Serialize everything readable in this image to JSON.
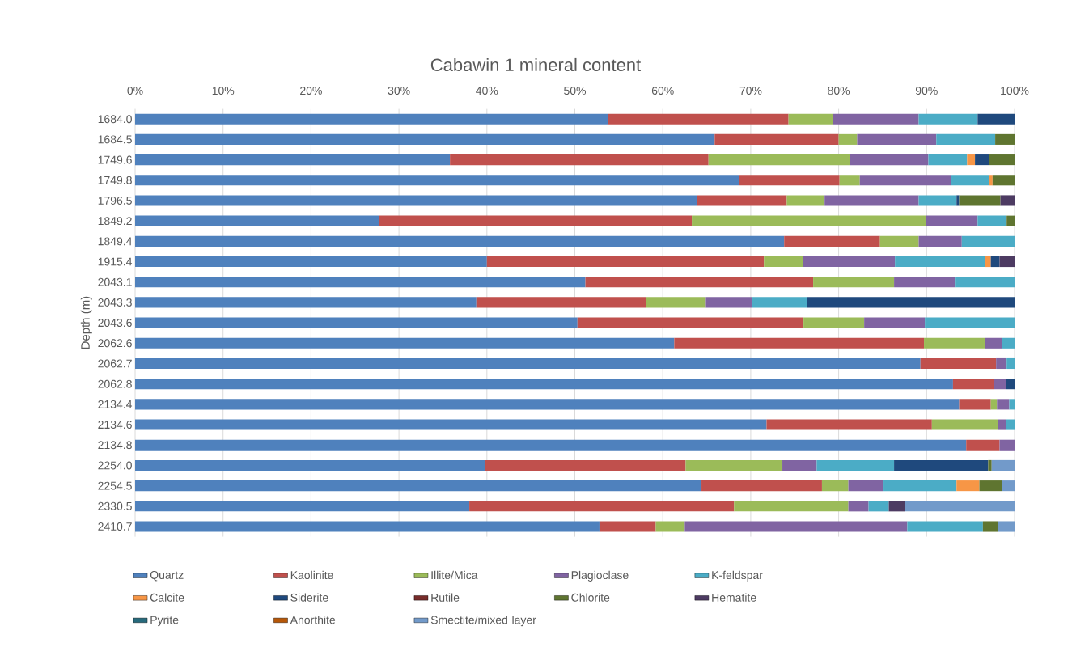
{
  "chart_data": {
    "type": "bar",
    "orientation": "horizontal",
    "stacked": true,
    "title": "Cabawin 1 mineral content",
    "ylabel": "Depth (m)",
    "categories": [
      "1684.0",
      "1684.5",
      "1749.6",
      "1749.8",
      "1796.5",
      "1849.2",
      "1849.4",
      "1915.4",
      "2043.1",
      "2043.3",
      "2043.6",
      "2062.6",
      "2062.7",
      "2062.8",
      "2134.4",
      "2134.6",
      "2134.8",
      "2254.0",
      "2254.5",
      "2330.5",
      "2410.7"
    ],
    "xlim": [
      0,
      100
    ],
    "xticks": [
      {
        "value": 0,
        "label": "0%"
      },
      {
        "value": 10,
        "label": "10%"
      },
      {
        "value": 20,
        "label": "20%"
      },
      {
        "value": 30,
        "label": "30%"
      },
      {
        "value": 40,
        "label": "40%"
      },
      {
        "value": 50,
        "label": "50%"
      },
      {
        "value": 60,
        "label": "60%"
      },
      {
        "value": 70,
        "label": "70%"
      },
      {
        "value": 80,
        "label": "80%"
      },
      {
        "value": 90,
        "label": "90%"
      },
      {
        "value": 100,
        "label": "100%"
      }
    ],
    "grid": "x",
    "legend": "bottom",
    "series": [
      {
        "name": "Quartz",
        "color": "#4f81bd",
        "values": [
          53.8,
          65.9,
          35.8,
          68.7,
          63.9,
          27.7,
          73.8,
          40.0,
          51.2,
          38.8,
          50.3,
          61.3,
          89.3,
          93.0,
          93.7,
          71.8,
          94.5,
          39.8,
          64.4,
          38.0,
          52.8
        ]
      },
      {
        "name": "Kaolinite",
        "color": "#c0504d",
        "values": [
          20.5,
          14.1,
          29.4,
          11.4,
          10.2,
          35.6,
          10.9,
          31.5,
          25.9,
          19.3,
          25.7,
          28.4,
          8.6,
          4.7,
          3.6,
          18.8,
          3.8,
          22.8,
          13.7,
          30.1,
          6.4
        ]
      },
      {
        "name": "Illite/Mica",
        "color": "#9bbb59",
        "values": [
          5.0,
          2.1,
          16.1,
          2.3,
          4.3,
          26.6,
          4.4,
          4.4,
          9.2,
          6.8,
          6.9,
          6.9,
          null,
          null,
          0.7,
          7.5,
          null,
          11.0,
          3.0,
          13.0,
          3.3
        ]
      },
      {
        "name": "Plagioclase",
        "color": "#8064a2",
        "values": [
          9.8,
          9.0,
          8.9,
          10.4,
          10.7,
          5.9,
          4.9,
          10.5,
          7.0,
          5.2,
          6.9,
          2.0,
          1.2,
          1.3,
          1.4,
          0.9,
          1.7,
          3.9,
          4.0,
          2.3,
          25.3
        ]
      },
      {
        "name": "K-feldspar",
        "color": "#4bacc6",
        "values": [
          6.7,
          6.7,
          4.4,
          4.3,
          4.3,
          3.3,
          6.0,
          10.2,
          6.7,
          6.3,
          10.2,
          1.4,
          0.9,
          null,
          0.6,
          1.0,
          null,
          8.8,
          8.3,
          2.3,
          8.6
        ]
      },
      {
        "name": "Calcite",
        "color": "#f79646",
        "values": [
          null,
          null,
          0.9,
          0.4,
          null,
          null,
          null,
          0.7,
          null,
          null,
          null,
          null,
          null,
          null,
          null,
          null,
          null,
          null,
          2.6,
          null,
          null
        ]
      },
      {
        "name": "Siderite",
        "color": "#1f497d",
        "values": [
          4.2,
          null,
          1.6,
          null,
          0.3,
          null,
          null,
          1.0,
          null,
          23.6,
          null,
          null,
          null,
          1.0,
          null,
          null,
          null,
          10.7,
          null,
          null,
          null
        ]
      },
      {
        "name": "Rutile",
        "color": "#772c2a",
        "values": [
          null,
          null,
          null,
          null,
          null,
          null,
          null,
          null,
          null,
          null,
          null,
          null,
          null,
          null,
          null,
          null,
          null,
          null,
          null,
          null,
          null
        ]
      },
      {
        "name": "Chlorite",
        "color": "#5f7530",
        "values": [
          null,
          2.2,
          2.9,
          2.5,
          4.7,
          0.9,
          null,
          null,
          null,
          null,
          null,
          null,
          null,
          null,
          null,
          null,
          null,
          0.4,
          2.6,
          null,
          1.7
        ]
      },
      {
        "name": "Hematite",
        "color": "#4d3b62",
        "values": [
          null,
          null,
          null,
          null,
          1.6,
          null,
          null,
          1.7,
          null,
          null,
          null,
          null,
          null,
          null,
          null,
          null,
          null,
          null,
          null,
          1.8,
          null
        ]
      },
      {
        "name": "Pyrite",
        "color": "#276a7c",
        "values": [
          null,
          null,
          null,
          null,
          null,
          null,
          null,
          null,
          null,
          null,
          null,
          null,
          null,
          null,
          null,
          null,
          null,
          null,
          null,
          null,
          null
        ]
      },
      {
        "name": "Anorthite",
        "color": "#b65708",
        "values": [
          null,
          null,
          null,
          null,
          null,
          null,
          null,
          null,
          null,
          null,
          null,
          null,
          null,
          null,
          null,
          null,
          null,
          null,
          null,
          null,
          null
        ]
      },
      {
        "name": "Smectite/mixed layer",
        "color": "#729aca",
        "values": [
          null,
          null,
          null,
          null,
          null,
          null,
          null,
          null,
          null,
          null,
          null,
          null,
          null,
          null,
          null,
          null,
          null,
          2.6,
          1.4,
          12.5,
          1.9
        ]
      }
    ]
  }
}
